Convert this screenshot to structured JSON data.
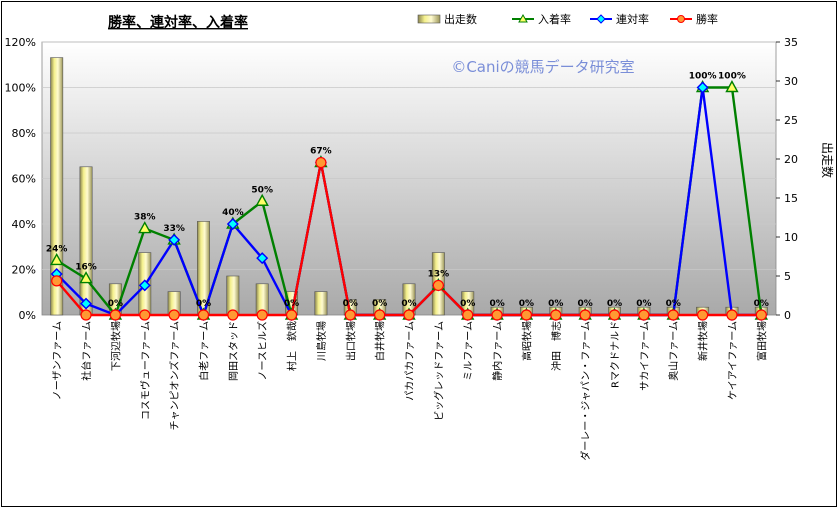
{
  "chart_data": {
    "type": "bar",
    "title": "勝率、連対率、入着率",
    "watermark": "©Caniの競馬データ研究室",
    "y2label": "出走数",
    "ylim": [
      0,
      120
    ],
    "y2lim": [
      0,
      35
    ],
    "yticks": [
      "0%",
      "20%",
      "40%",
      "60%",
      "80%",
      "100%",
      "120%"
    ],
    "y2ticks": [
      "0",
      "5",
      "10",
      "15",
      "20",
      "25",
      "30",
      "35"
    ],
    "categories": [
      "ノーザンファーム",
      "社台ファーム",
      "下河辺牧場",
      "コスモヴューファーム",
      "チャンピオンズファーム",
      "白老ファーム",
      "岡田スタッド",
      "ノースヒルズ",
      "村上　欽哉",
      "川島牧場",
      "出口牧場",
      "白井牧場",
      "パカパカファーム",
      "ビッグレッドファーム",
      "ミルファーム",
      "静内ファーム",
      "高昭牧場",
      "沖田　博志",
      "ダーレー・ジャパン・ファーム",
      "Rマクドナルド",
      "サカイファーム",
      "奥山ファーム",
      "新井牧場",
      "ケイアイファーム",
      "富田牧場"
    ],
    "legend": [
      "出走数",
      "入着率",
      "連対率",
      "勝率"
    ],
    "legend_position": "top-right",
    "series": [
      {
        "name": "出走数",
        "type": "bar",
        "axis": "y2",
        "color": "#f4f08c",
        "values": [
          33,
          19,
          4,
          8,
          3,
          12,
          5,
          4,
          3,
          3,
          2,
          2,
          4,
          8,
          3,
          1,
          1,
          1,
          1,
          1,
          1,
          1,
          1,
          1,
          1
        ]
      },
      {
        "name": "入着率",
        "type": "line",
        "axis": "y",
        "color": "#008000",
        "marker": "triangle",
        "values": [
          24,
          16,
          0,
          38,
          33,
          0,
          40,
          50,
          0,
          67,
          0,
          0,
          0,
          13,
          0,
          0,
          0,
          0,
          0,
          0,
          0,
          0,
          100,
          100,
          0
        ]
      },
      {
        "name": "連対率",
        "type": "line",
        "axis": "y",
        "color": "#0000ff",
        "marker": "diamond",
        "values": [
          18,
          5,
          0,
          13,
          33,
          0,
          40,
          25,
          0,
          67,
          0,
          0,
          0,
          13,
          0,
          0,
          0,
          0,
          0,
          0,
          0,
          0,
          100,
          0,
          0
        ]
      },
      {
        "name": "勝率",
        "type": "line",
        "axis": "y",
        "color": "#ff0000",
        "marker": "circle",
        "values": [
          15,
          0,
          0,
          0,
          0,
          0,
          0,
          0,
          0,
          67,
          0,
          0,
          0,
          13,
          0,
          0,
          0,
          0,
          0,
          0,
          0,
          0,
          0,
          0,
          0
        ]
      }
    ],
    "data_labels": [
      "24%",
      "16%",
      "0%",
      "38%",
      "33%",
      "0%",
      "40%",
      "50%",
      "0%",
      "67%",
      "0%",
      "0%",
      "0%",
      "13%",
      "0%",
      "0%",
      "0%",
      "0%",
      "0%",
      "0%",
      "0%",
      "0%",
      "100%",
      "100%",
      "0%"
    ],
    "grid": true
  }
}
